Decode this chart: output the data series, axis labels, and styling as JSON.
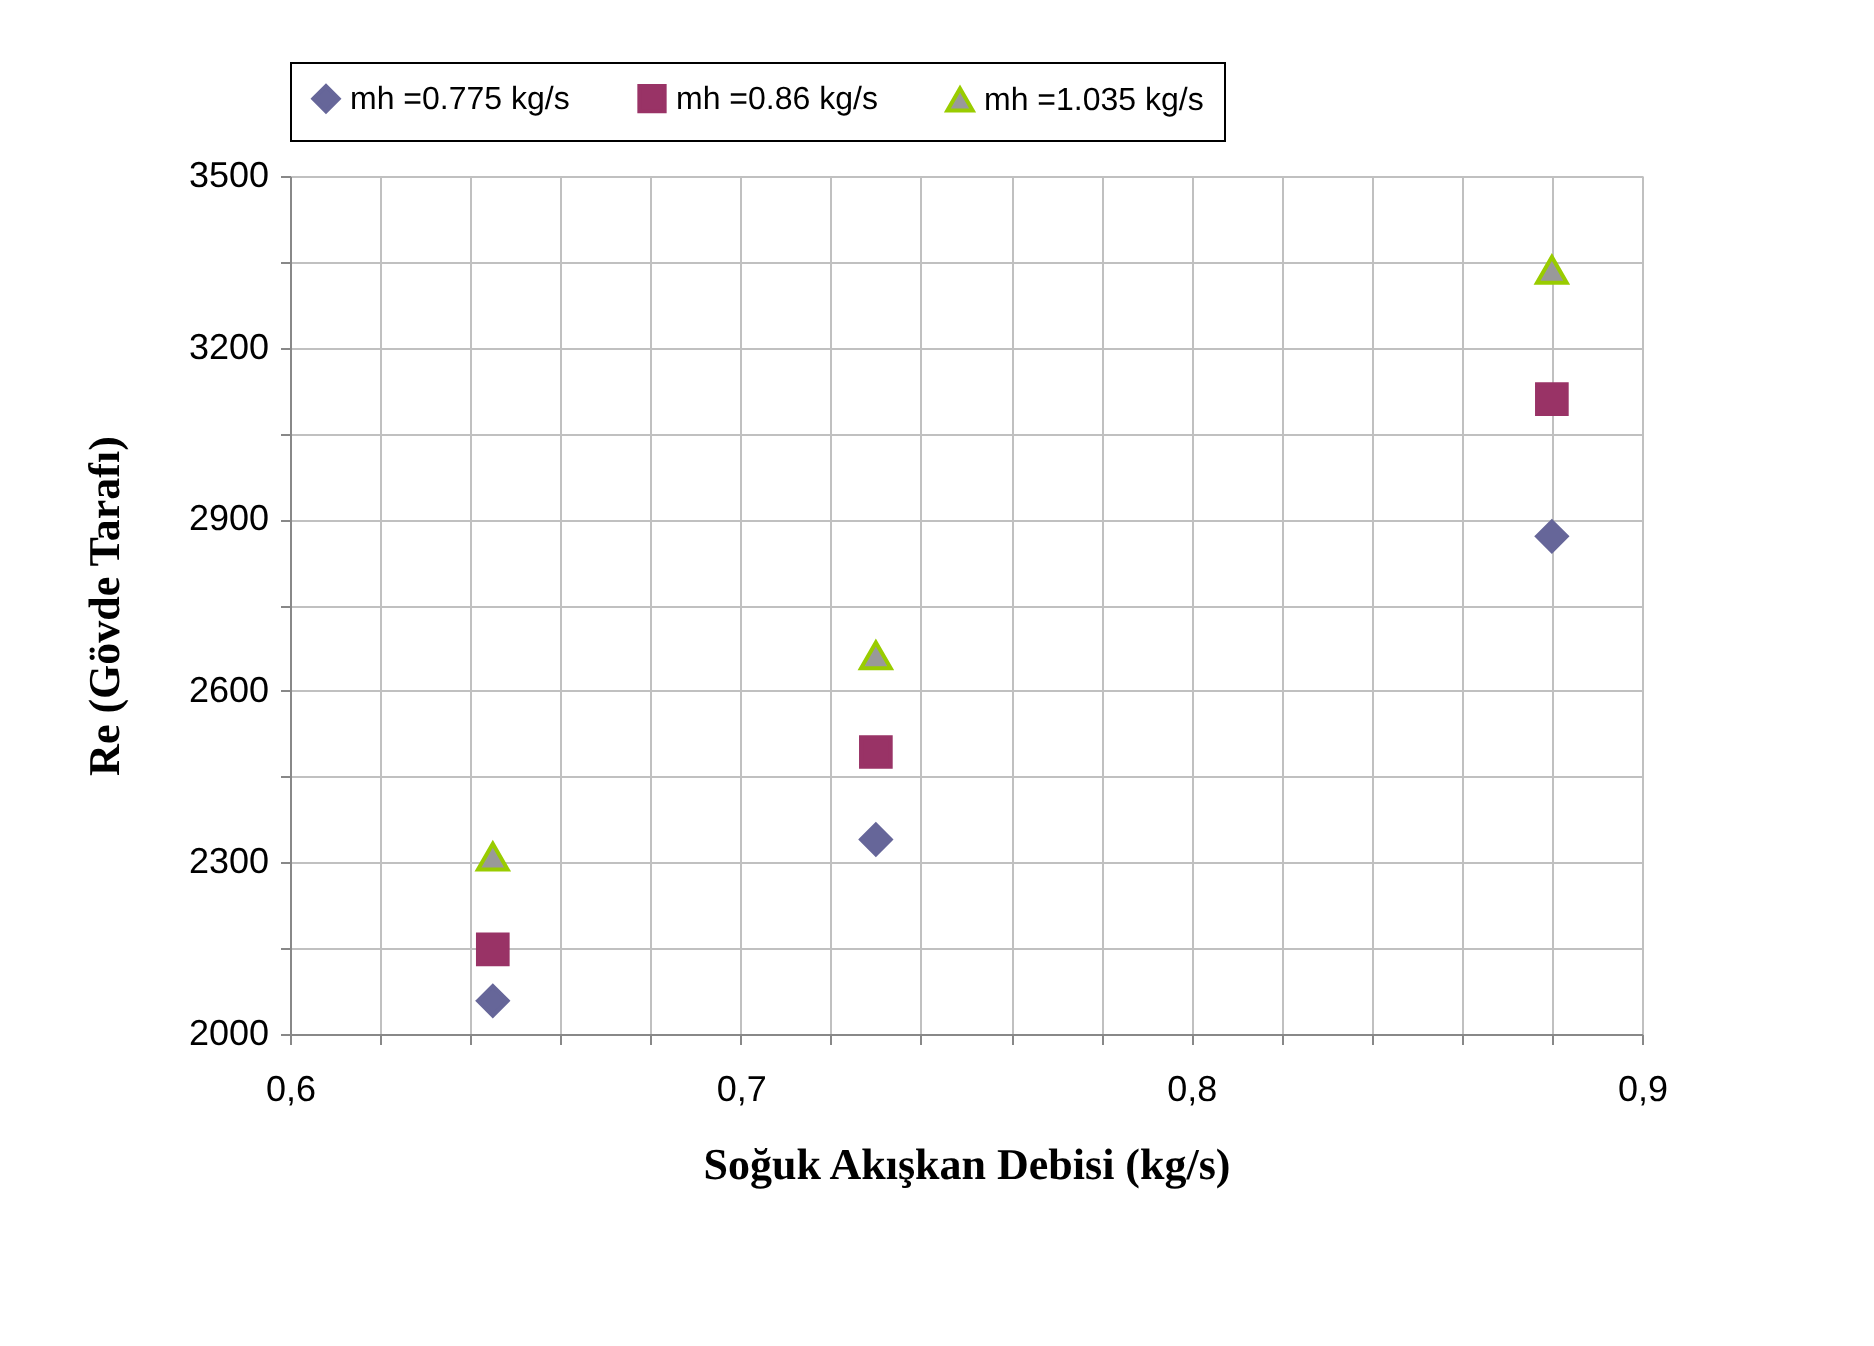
{
  "chart_data": {
    "type": "scatter",
    "xlabel": "Soğuk Akışkan Debisi (kg/s)",
    "ylabel": "Re (Gövde Tarafı)",
    "x": [
      0.645,
      0.73,
      0.88
    ],
    "series": [
      {
        "name": "mh =0.775 kg/s",
        "color": "#666699",
        "marker": "diamond",
        "values": [
          2058,
          2340,
          2870
        ]
      },
      {
        "name": "mh =0.86 kg/s",
        "color": "#993366",
        "marker": "square",
        "values": [
          2148,
          2493,
          3110
        ]
      },
      {
        "name": "mh =1.035 kg/s",
        "color": "#999999",
        "marker": "triangle",
        "values": [
          2310,
          2662,
          3336
        ]
      }
    ],
    "xlim": [
      0.6,
      0.9
    ],
    "xticks": [
      {
        "value": 0.6,
        "label": "0,6"
      },
      {
        "value": 0.62,
        "label": null
      },
      {
        "value": 0.64,
        "label": null
      },
      {
        "value": 0.66,
        "label": null
      },
      {
        "value": 0.68,
        "label": null
      },
      {
        "value": 0.7,
        "label": "0,7"
      },
      {
        "value": 0.72,
        "label": null
      },
      {
        "value": 0.74,
        "label": null
      },
      {
        "value": 0.76,
        "label": null
      },
      {
        "value": 0.78,
        "label": null
      },
      {
        "value": 0.8,
        "label": "0,8"
      },
      {
        "value": 0.82,
        "label": null
      },
      {
        "value": 0.84,
        "label": null
      },
      {
        "value": 0.86,
        "label": null
      },
      {
        "value": 0.88,
        "label": null
      },
      {
        "value": 0.9,
        "label": "0,9"
      }
    ],
    "ylim": [
      2000,
      3500
    ],
    "yticks": [
      2000,
      {
        "value": 2150,
        "label": null
      },
      2300,
      {
        "value": 2450,
        "label": null
      },
      2600,
      {
        "value": 2750,
        "label": null
      },
      2900,
      {
        "value": 3050,
        "label": null
      },
      3200,
      {
        "value": 3350,
        "label": null
      },
      3500
    ],
    "grid": true,
    "legend": "top"
  }
}
